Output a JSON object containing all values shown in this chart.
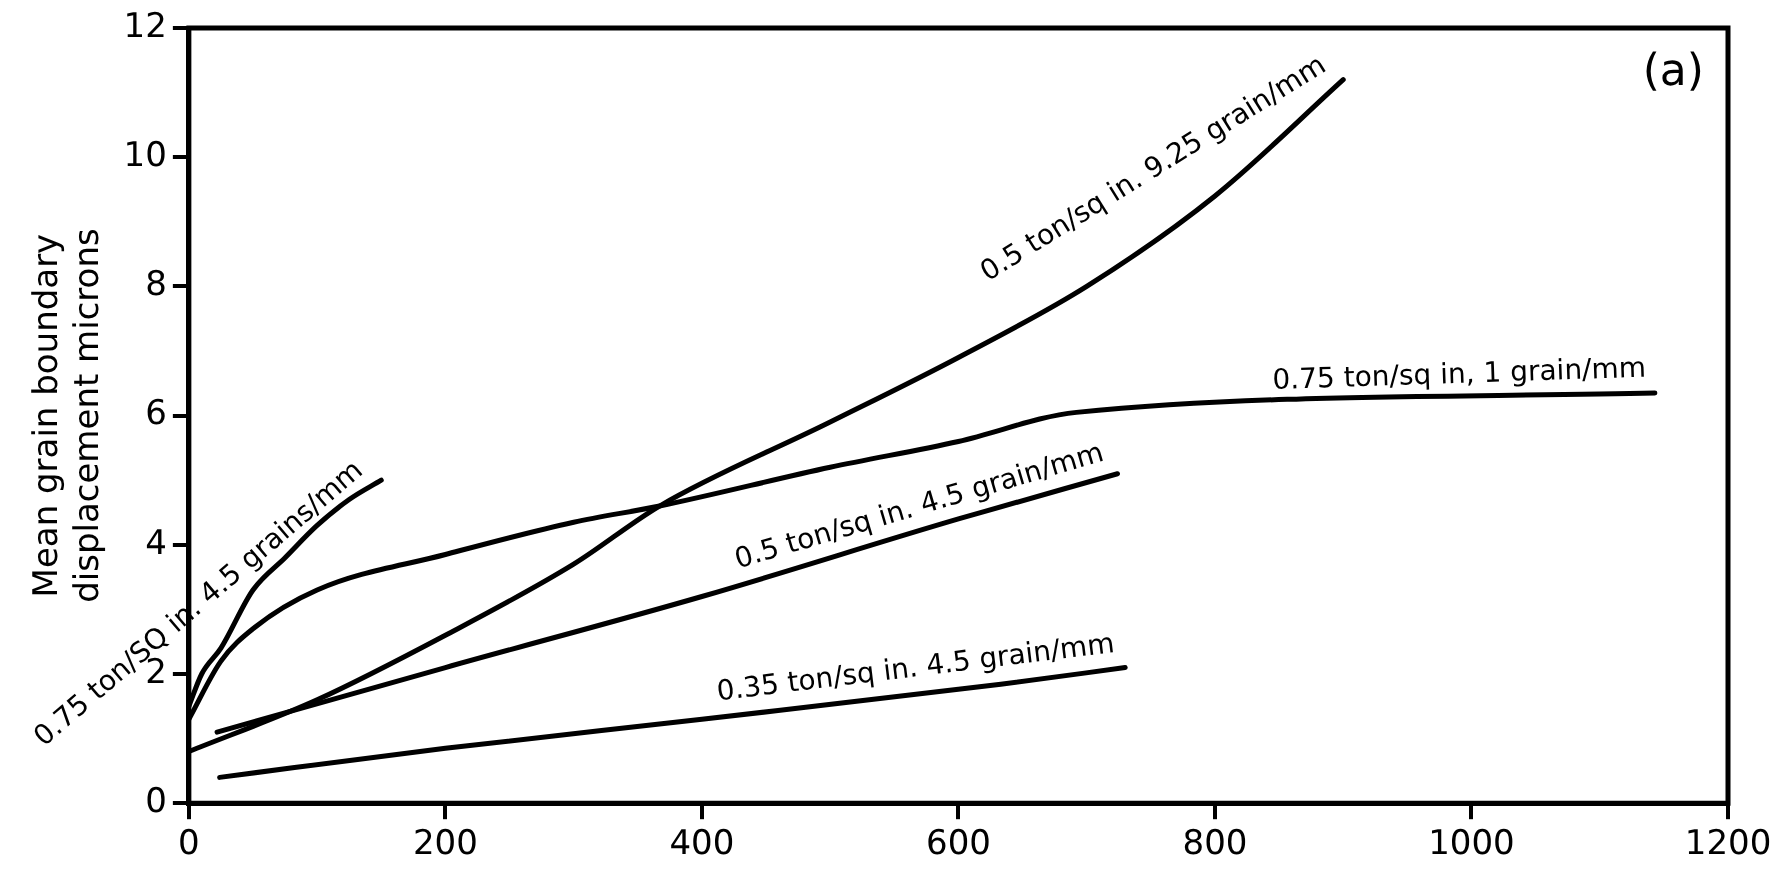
{
  "chart_data": {
    "type": "line",
    "ylabel": "Mean grain boundary\ndisplacement microns",
    "xlim": [
      0,
      1200
    ],
    "xticks": [
      0,
      200,
      400,
      600,
      800,
      1000,
      1200
    ],
    "ylim": [
      0,
      12
    ],
    "yticks": [
      0,
      2,
      4,
      6,
      8,
      10,
      12
    ],
    "grid": false,
    "legend": false,
    "marker": "none",
    "line_style": "solid",
    "annotations": [
      "(a)"
    ],
    "series": [
      {
        "name": "0.75 ton/SQ in. 4.5 grains/mm",
        "color": "#000000",
        "x": [
          0,
          10,
          25,
          50,
          75,
          100,
          125,
          150
        ],
        "values": [
          1.5,
          2.0,
          2.4,
          3.3,
          3.8,
          4.3,
          4.7,
          5.0
        ]
      },
      {
        "name": "0.5 ton/sq in. 9.25 grain/mm",
        "color": "#000000",
        "x": [
          0,
          100,
          200,
          300,
          367,
          500,
          600,
          700,
          800,
          900
        ],
        "values": [
          0.8,
          1.6,
          2.6,
          3.7,
          4.6,
          5.9,
          6.9,
          8.0,
          9.4,
          11.2
        ]
      },
      {
        "name": "0.75 ton/sq in, 1 grain/mm",
        "color": "#000000",
        "x": [
          0,
          25,
          50,
          100,
          200,
          300,
          367,
          500,
          600,
          692,
          1143
        ],
        "values": [
          1.3,
          2.2,
          2.7,
          3.3,
          3.85,
          4.35,
          4.6,
          5.2,
          5.6,
          6.05,
          6.35
        ]
      },
      {
        "name": "0.5 ton/sq in. 4.5 grain/mm",
        "color": "#000000",
        "x": [
          22,
          200,
          400,
          600,
          724
        ],
        "values": [
          1.1,
          2.1,
          3.2,
          4.4,
          5.1
        ]
      },
      {
        "name": "0.35 ton/sq in. 4.5 grain/mm",
        "color": "#000000",
        "x": [
          24,
          200,
          400,
          633,
          730
        ],
        "values": [
          0.4,
          0.85,
          1.3,
          1.84,
          2.1
        ]
      }
    ]
  }
}
